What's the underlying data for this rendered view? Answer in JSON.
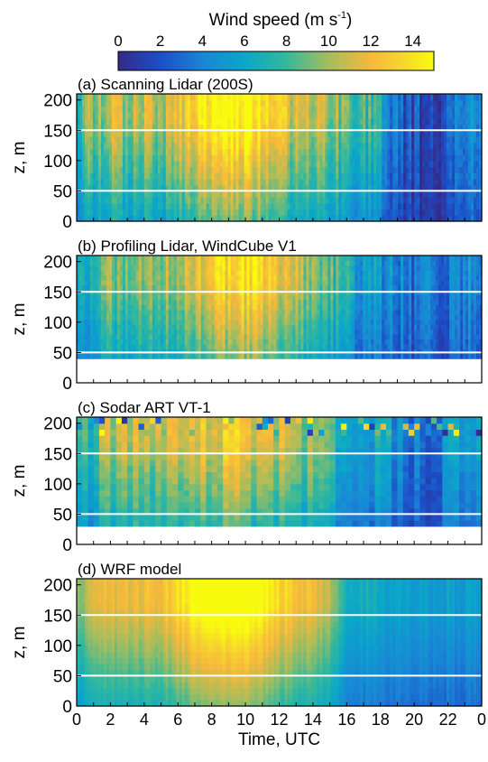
{
  "colorbar": {
    "title": "Wind speed (m s",
    "title_sup": "-1",
    "title_end": ")",
    "ticks": [
      0,
      2,
      4,
      6,
      8,
      10,
      12,
      14
    ],
    "range": [
      0,
      15
    ]
  },
  "chart_data": [
    {
      "type": "heatmap",
      "title": "(a) Scanning Lidar (200S)",
      "ylabel": "z, m",
      "ylim": [
        0,
        210
      ],
      "yticks": [
        0,
        50,
        100,
        150,
        200
      ],
      "xlim": [
        0,
        24
      ],
      "xticks": [
        "0",
        "2",
        "4",
        "6",
        "8",
        "10",
        "12",
        "14",
        "16",
        "18",
        "20",
        "22",
        "0"
      ],
      "data_z_range": [
        0,
        210
      ],
      "reference_lines": [
        50,
        150
      ],
      "description_values": [
        {
          "t": 0,
          "v": 7.5
        },
        {
          "t": 1,
          "v": 9
        },
        {
          "t": 2,
          "v": 10
        },
        {
          "t": 3,
          "v": 9.5
        },
        {
          "t": 4,
          "v": 10
        },
        {
          "t": 5,
          "v": 9
        },
        {
          "t": 6,
          "v": 11
        },
        {
          "t": 7,
          "v": 12
        },
        {
          "t": 8,
          "v": 13
        },
        {
          "t": 9,
          "v": 14
        },
        {
          "t": 10,
          "v": 14.5
        },
        {
          "t": 11,
          "v": 13
        },
        {
          "t": 12,
          "v": 11.5
        },
        {
          "t": 13,
          "v": 10
        },
        {
          "t": 14,
          "v": 10
        },
        {
          "t": 15,
          "v": 9
        },
        {
          "t": 16,
          "v": 8.5
        },
        {
          "t": 17,
          "v": 7.5
        },
        {
          "t": 18,
          "v": 6.5
        },
        {
          "t": 19,
          "v": 3
        },
        {
          "t": 20,
          "v": 1.5
        },
        {
          "t": 21,
          "v": 1.5
        },
        {
          "t": 22,
          "v": 2
        },
        {
          "t": 23,
          "v": 4
        },
        {
          "t": 24,
          "v": 5
        }
      ]
    },
    {
      "type": "heatmap",
      "title": "(b) Profiling Lidar, WindCube V1",
      "ylabel": "z, m",
      "ylim": [
        0,
        210
      ],
      "yticks": [
        0,
        50,
        100,
        150,
        200
      ],
      "xlim": [
        0,
        24
      ],
      "xticks": [
        "0",
        "2",
        "4",
        "6",
        "8",
        "10",
        "12",
        "14",
        "16",
        "18",
        "20",
        "22",
        "0"
      ],
      "data_z_range": [
        40,
        210
      ],
      "reference_lines": [
        50,
        150
      ],
      "description_values": [
        {
          "t": 0,
          "v": 6
        },
        {
          "t": 1,
          "v": 7
        },
        {
          "t": 2,
          "v": 8.5
        },
        {
          "t": 3,
          "v": 8
        },
        {
          "t": 4,
          "v": 9
        },
        {
          "t": 5,
          "v": 8.5
        },
        {
          "t": 6,
          "v": 10
        },
        {
          "t": 7,
          "v": 10.5
        },
        {
          "t": 8,
          "v": 12
        },
        {
          "t": 9,
          "v": 12.5
        },
        {
          "t": 10,
          "v": 13
        },
        {
          "t": 11,
          "v": 12
        },
        {
          "t": 12,
          "v": 11
        },
        {
          "t": 13,
          "v": 9.5
        },
        {
          "t": 14,
          "v": 9
        },
        {
          "t": 15,
          "v": 7.5
        },
        {
          "t": 16,
          "v": 6
        },
        {
          "t": 17,
          "v": 5
        },
        {
          "t": 18,
          "v": 4.5
        },
        {
          "t": 19,
          "v": 4
        },
        {
          "t": 20,
          "v": 3
        },
        {
          "t": 21,
          "v": 3.5
        },
        {
          "t": 22,
          "v": 3.5
        },
        {
          "t": 23,
          "v": 4.5
        },
        {
          "t": 24,
          "v": 5
        }
      ]
    },
    {
      "type": "heatmap",
      "title": "(c) Sodar ART VT-1",
      "ylabel": "z, m",
      "ylim": [
        0,
        210
      ],
      "yticks": [
        0,
        50,
        100,
        150,
        200
      ],
      "xlim": [
        0,
        24
      ],
      "xticks": [
        "0",
        "2",
        "4",
        "6",
        "8",
        "10",
        "12",
        "14",
        "16",
        "18",
        "20",
        "22",
        "0"
      ],
      "data_z_range": [
        30,
        210
      ],
      "reference_lines": [
        50,
        150
      ],
      "description_values": [
        {
          "t": 0,
          "v": 6.5
        },
        {
          "t": 1,
          "v": 7.5
        },
        {
          "t": 2,
          "v": 9
        },
        {
          "t": 3,
          "v": 9
        },
        {
          "t": 4,
          "v": 9.5
        },
        {
          "t": 5,
          "v": 9
        },
        {
          "t": 6,
          "v": 10
        },
        {
          "t": 7,
          "v": 10.5
        },
        {
          "t": 8,
          "v": 11
        },
        {
          "t": 9,
          "v": 11.5
        },
        {
          "t": 10,
          "v": 11
        },
        {
          "t": 11,
          "v": 10.5
        },
        {
          "t": 12,
          "v": 10
        },
        {
          "t": 13,
          "v": 9
        },
        {
          "t": 14,
          "v": 8.5
        },
        {
          "t": 15,
          "v": 7.5
        },
        {
          "t": 16,
          "v": 6.5
        },
        {
          "t": 17,
          "v": 6
        },
        {
          "t": 18,
          "v": 5
        },
        {
          "t": 19,
          "v": 4.5
        },
        {
          "t": 20,
          "v": 3
        },
        {
          "t": 21,
          "v": 3.5
        },
        {
          "t": 22,
          "v": 4
        },
        {
          "t": 23,
          "v": 4.5
        },
        {
          "t": 24,
          "v": 5
        }
      ]
    },
    {
      "type": "heatmap",
      "title": "(d) WRF model",
      "ylabel": "z, m",
      "ylim": [
        0,
        210
      ],
      "yticks": [
        0,
        50,
        100,
        150,
        200
      ],
      "xlim": [
        0,
        24
      ],
      "xticks": [
        "0",
        "2",
        "4",
        "6",
        "8",
        "10",
        "12",
        "14",
        "16",
        "18",
        "20",
        "22",
        "0"
      ],
      "xlabel": "Time, UTC",
      "data_z_range": [
        0,
        210
      ],
      "reference_lines": [
        50,
        150
      ],
      "description_values": [
        {
          "t": 0,
          "v": 9
        },
        {
          "t": 1,
          "v": 10
        },
        {
          "t": 2,
          "v": 11
        },
        {
          "t": 3,
          "v": 10.5
        },
        {
          "t": 4,
          "v": 11
        },
        {
          "t": 5,
          "v": 11
        },
        {
          "t": 6,
          "v": 12.5
        },
        {
          "t": 7,
          "v": 14
        },
        {
          "t": 8,
          "v": 15
        },
        {
          "t": 9,
          "v": 15
        },
        {
          "t": 10,
          "v": 15
        },
        {
          "t": 11,
          "v": 14
        },
        {
          "t": 12,
          "v": 12.5
        },
        {
          "t": 13,
          "v": 11.5
        },
        {
          "t": 14,
          "v": 11
        },
        {
          "t": 15,
          "v": 9.5
        },
        {
          "t": 16,
          "v": 6.5
        },
        {
          "t": 17,
          "v": 6
        },
        {
          "t": 18,
          "v": 5.5
        },
        {
          "t": 19,
          "v": 5.5
        },
        {
          "t": 20,
          "v": 5
        },
        {
          "t": 21,
          "v": 5
        },
        {
          "t": 22,
          "v": 5
        },
        {
          "t": 23,
          "v": 5
        },
        {
          "t": 24,
          "v": 5
        }
      ]
    }
  ]
}
